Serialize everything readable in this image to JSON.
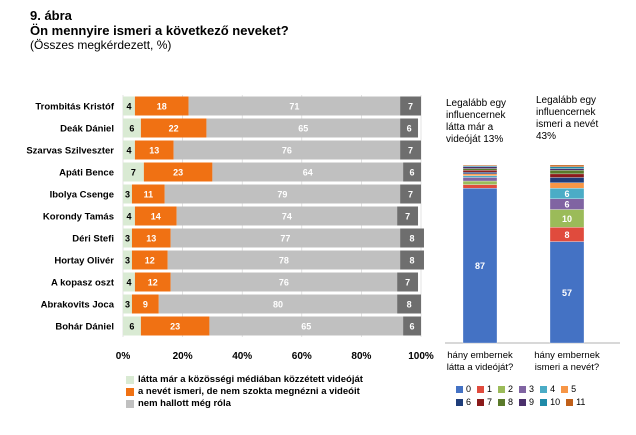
{
  "header": {
    "figure_no": "9. ábra",
    "question": "Ön mennyire ismeri a következő neveket?",
    "base": "(Összes megkérdezett, %)"
  },
  "chart_data": [
    {
      "type": "bar",
      "orientation": "horizontal",
      "stacked": "percent",
      "categories": [
        "Trombitás Kristóf",
        "Deák Dániel",
        "Szarvas Szilveszter",
        "Apáti Bence",
        "Ibolya Csenge",
        "Korondy Tamás",
        "Déri Stefi",
        "Hortay Olivér",
        "A kopasz oszt",
        "Abrakovits Joca",
        "Bohár Dániel"
      ],
      "series": [
        {
          "name": "látta már a közösségi médiában közzétett videóját",
          "color": "#d9ead3",
          "values": [
            4,
            6,
            4,
            7,
            3,
            4,
            3,
            3,
            4,
            3,
            6
          ]
        },
        {
          "name": "a nevét ismeri, de nem szokta megnézni a videóit",
          "color": "#f07113",
          "values": [
            18,
            22,
            13,
            23,
            11,
            14,
            13,
            12,
            12,
            9,
            23
          ]
        },
        {
          "name": "nem hallott még róla",
          "color": "#c0c0c0",
          "values": [
            71,
            65,
            76,
            64,
            79,
            74,
            77,
            78,
            76,
            80,
            65
          ]
        },
        {
          "name": "",
          "color": "#6e6e6e",
          "values": [
            7,
            6,
            7,
            6,
            7,
            7,
            8,
            8,
            7,
            8,
            6
          ]
        }
      ],
      "xlim": [
        0,
        100
      ],
      "x_ticks": [
        "0%",
        "20%",
        "40%",
        "60%",
        "80%",
        "100%"
      ]
    },
    {
      "type": "bar",
      "stacked": true,
      "categories": [
        "hány embernek látta a videóját?",
        "hány embernek ismeri a nevét?"
      ],
      "annotations": [
        "Legalább egy influencernek látta már a videóját 13%",
        "Legalább egy influencernek ismeri a nevét 43%"
      ],
      "legend": [
        "0",
        "1",
        "2",
        "3",
        "4",
        "5",
        "6",
        "7",
        "8",
        "9",
        "10",
        "11"
      ],
      "colors": [
        "#4472c4",
        "#e04b3d",
        "#9bbb59",
        "#8064a2",
        "#4bacc6",
        "#f79646",
        "#1f3d7a",
        "#8b1a1a",
        "#5a7a2a",
        "#4a2f6b",
        "#1f8aa8",
        "#c0601a"
      ],
      "stacks": [
        {
          "values": [
            87,
            2,
            2,
            2,
            1,
            1,
            1,
            1,
            1,
            1,
            0.5,
            0.5
          ],
          "labels": [
            "87",
            "",
            "",
            "",
            "",
            "",
            "",
            "",
            "",
            "",
            "",
            ""
          ]
        },
        {
          "values": [
            57,
            8,
            10,
            6,
            6,
            3,
            3,
            2,
            2,
            1,
            1,
            1
          ],
          "labels": [
            "57",
            "8",
            "10",
            "6",
            "6",
            "",
            "",
            "",
            "",
            "",
            "",
            ""
          ]
        }
      ]
    }
  ]
}
